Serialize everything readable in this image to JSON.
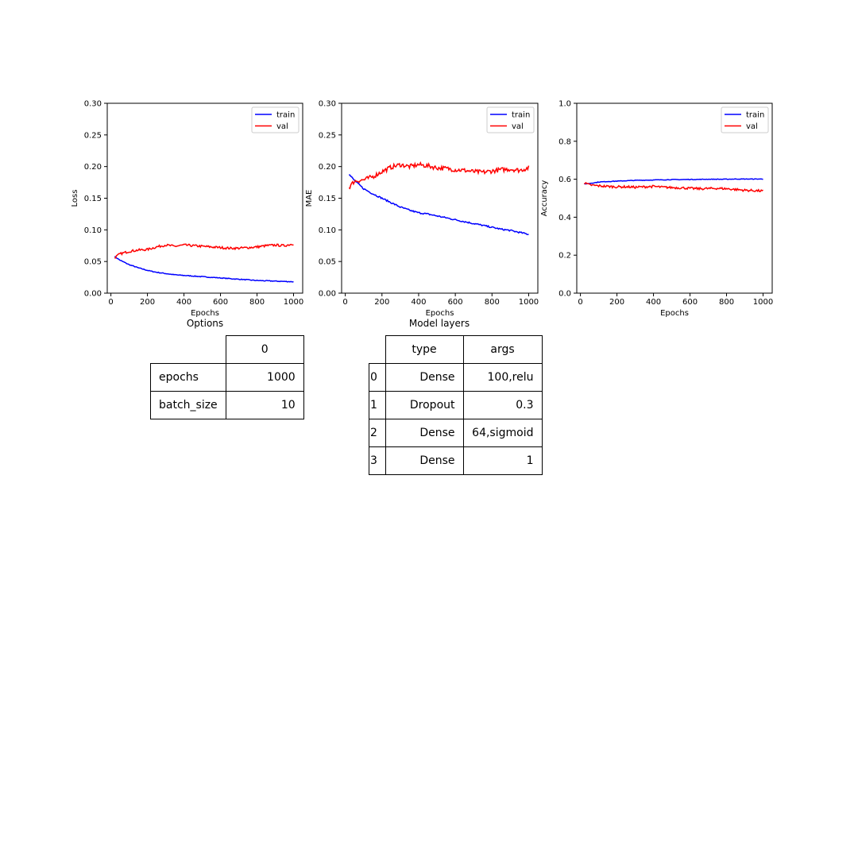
{
  "chart_data": [
    {
      "type": "line",
      "xlabel": "Epochs",
      "ylabel": "Loss",
      "xlim": [
        -20,
        1050
      ],
      "ylim": [
        0.0,
        0.3
      ],
      "xticks": [
        0,
        200,
        400,
        600,
        800,
        1000
      ],
      "yticks": [
        "0.00",
        "0.05",
        "0.10",
        "0.15",
        "0.20",
        "0.25",
        "0.30"
      ],
      "legend": "top-right",
      "series": [
        {
          "name": "train",
          "color": "#0000ff",
          "x": [
            20,
            50,
            100,
            150,
            200,
            250,
            300,
            350,
            400,
            450,
            500,
            550,
            600,
            650,
            700,
            750,
            800,
            850,
            900,
            950,
            1000
          ],
          "y": [
            0.058,
            0.052,
            0.045,
            0.04,
            0.036,
            0.033,
            0.031,
            0.029,
            0.028,
            0.027,
            0.026,
            0.025,
            0.024,
            0.023,
            0.022,
            0.021,
            0.02,
            0.0195,
            0.019,
            0.0185,
            0.018
          ]
        },
        {
          "name": "val",
          "color": "#ff0000",
          "x": [
            20,
            50,
            100,
            150,
            200,
            250,
            300,
            350,
            400,
            450,
            500,
            550,
            600,
            650,
            700,
            750,
            800,
            850,
            900,
            950,
            1000
          ],
          "y": [
            0.056,
            0.062,
            0.066,
            0.068,
            0.069,
            0.073,
            0.076,
            0.074,
            0.076,
            0.075,
            0.074,
            0.073,
            0.072,
            0.071,
            0.071,
            0.072,
            0.073,
            0.075,
            0.076,
            0.075,
            0.078
          ]
        }
      ]
    },
    {
      "type": "line",
      "xlabel": "Epochs",
      "ylabel": "MAE",
      "xlim": [
        -20,
        1050
      ],
      "ylim": [
        0.0,
        0.3
      ],
      "xticks": [
        0,
        200,
        400,
        600,
        800,
        1000
      ],
      "yticks": [
        "0.00",
        "0.05",
        "0.10",
        "0.15",
        "0.20",
        "0.25",
        "0.30"
      ],
      "legend": "top-right",
      "series": [
        {
          "name": "train",
          "color": "#0000ff",
          "x": [
            20,
            50,
            100,
            150,
            200,
            250,
            300,
            350,
            400,
            450,
            500,
            550,
            600,
            650,
            700,
            750,
            800,
            850,
            900,
            950,
            1000
          ],
          "y": [
            0.188,
            0.178,
            0.165,
            0.157,
            0.15,
            0.143,
            0.136,
            0.131,
            0.127,
            0.125,
            0.122,
            0.119,
            0.116,
            0.113,
            0.11,
            0.107,
            0.104,
            0.101,
            0.099,
            0.096,
            0.093
          ]
        },
        {
          "name": "val",
          "color": "#ff0000",
          "x": [
            20,
            50,
            100,
            150,
            200,
            250,
            300,
            350,
            400,
            450,
            500,
            550,
            600,
            650,
            700,
            750,
            800,
            850,
            900,
            950,
            1000
          ],
          "y": [
            0.167,
            0.177,
            0.179,
            0.184,
            0.192,
            0.199,
            0.203,
            0.2,
            0.203,
            0.201,
            0.198,
            0.197,
            0.195,
            0.194,
            0.192,
            0.191,
            0.193,
            0.195,
            0.196,
            0.194,
            0.198
          ]
        }
      ]
    },
    {
      "type": "line",
      "xlabel": "Epochs",
      "ylabel": "Accuracy",
      "xlim": [
        -20,
        1050
      ],
      "ylim": [
        0.0,
        1.0
      ],
      "xticks": [
        0,
        200,
        400,
        600,
        800,
        1000
      ],
      "yticks": [
        "0.0",
        "0.2",
        "0.4",
        "0.6",
        "0.8",
        "1.0"
      ],
      "legend": "top-right",
      "series": [
        {
          "name": "train",
          "color": "#0000ff",
          "x": [
            20,
            50,
            100,
            150,
            200,
            250,
            300,
            350,
            400,
            450,
            500,
            550,
            600,
            650,
            700,
            750,
            800,
            850,
            900,
            950,
            1000
          ],
          "y": [
            0.575,
            0.578,
            0.585,
            0.588,
            0.59,
            0.592,
            0.594,
            0.595,
            0.596,
            0.597,
            0.598,
            0.598,
            0.599,
            0.599,
            0.6,
            0.6,
            0.6,
            0.601,
            0.601,
            0.601,
            0.601
          ]
        },
        {
          "name": "val",
          "color": "#ff0000",
          "x": [
            20,
            50,
            100,
            150,
            200,
            250,
            300,
            350,
            400,
            450,
            500,
            550,
            600,
            650,
            700,
            750,
            800,
            850,
            900,
            950,
            1000
          ],
          "y": [
            0.58,
            0.57,
            0.565,
            0.562,
            0.56,
            0.56,
            0.558,
            0.56,
            0.562,
            0.558,
            0.556,
            0.555,
            0.552,
            0.55,
            0.551,
            0.552,
            0.55,
            0.546,
            0.542,
            0.54,
            0.538
          ]
        }
      ]
    }
  ],
  "options_table": {
    "title": "Options",
    "col_header": "0",
    "rows": [
      {
        "label": "epochs",
        "value": "1000"
      },
      {
        "label": "batch_size",
        "value": "10"
      }
    ]
  },
  "layers_table": {
    "title": "Model layers",
    "col_type": "type",
    "col_args": "args",
    "rows": [
      {
        "index": "0",
        "type": "Dense",
        "args": "100,relu"
      },
      {
        "index": "1",
        "type": "Dropout",
        "args": "0.3"
      },
      {
        "index": "2",
        "type": "Dense",
        "args": "64,sigmoid"
      },
      {
        "index": "3",
        "type": "Dense",
        "args": "1"
      }
    ]
  }
}
